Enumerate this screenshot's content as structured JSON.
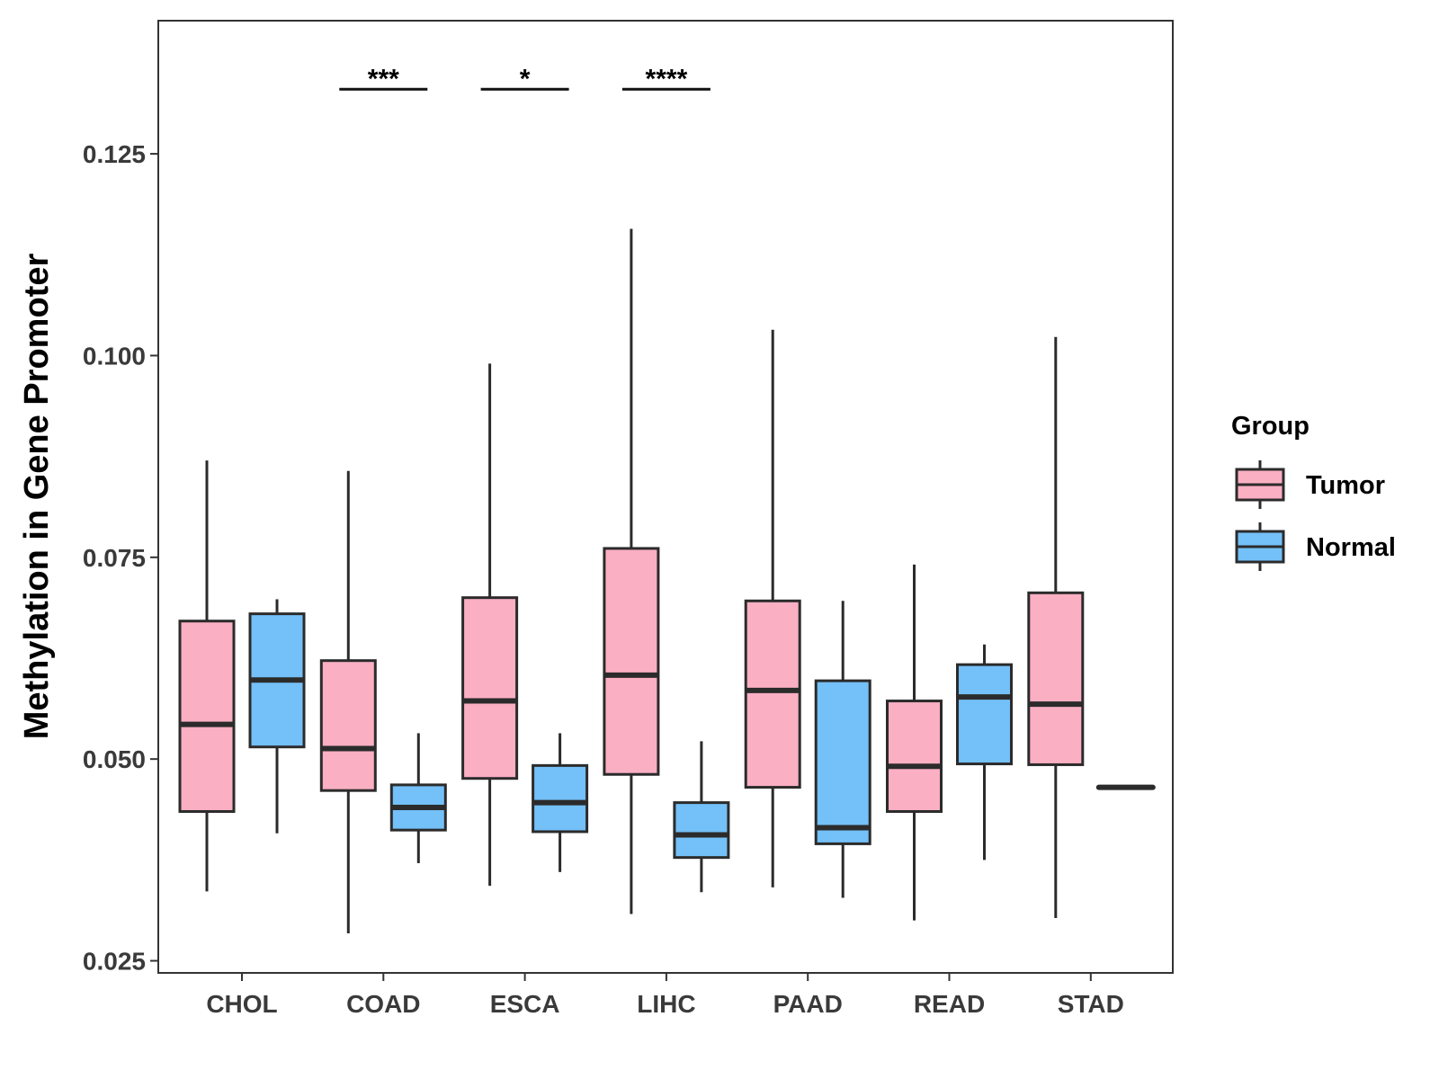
{
  "chart_data": {
    "type": "boxplot",
    "title": "",
    "xlabel": "",
    "ylabel": "Methylation in Gene Promoter",
    "ylim": [
      0.0235,
      0.1415
    ],
    "yticks": [
      0.025,
      0.05,
      0.075,
      0.1,
      0.125
    ],
    "ytick_labels": [
      "0.025",
      "0.050",
      "0.075",
      "0.100",
      "0.125"
    ],
    "categories": [
      "CHOL",
      "COAD",
      "ESCA",
      "LIHC",
      "PAAD",
      "READ",
      "STAD"
    ],
    "legend": {
      "title": "Group",
      "position": "right",
      "entries": [
        {
          "name": "Tumor",
          "color": "#FBAFC3"
        },
        {
          "name": "Normal",
          "color": "#74C0F8"
        }
      ]
    },
    "series": [
      {
        "name": "Tumor",
        "color": "#FBAFC3",
        "boxes": [
          {
            "category": "CHOL",
            "whisker_low": 0.0336,
            "q1": 0.0435,
            "median": 0.0543,
            "q3": 0.0671,
            "whisker_high": 0.087
          },
          {
            "category": "COAD",
            "whisker_low": 0.0284,
            "q1": 0.0461,
            "median": 0.0513,
            "q3": 0.0622,
            "whisker_high": 0.0857
          },
          {
            "category": "ESCA",
            "whisker_low": 0.0343,
            "q1": 0.0476,
            "median": 0.0572,
            "q3": 0.07,
            "whisker_high": 0.099
          },
          {
            "category": "LIHC",
            "whisker_low": 0.0308,
            "q1": 0.0481,
            "median": 0.0604,
            "q3": 0.0761,
            "whisker_high": 0.1157
          },
          {
            "category": "PAAD",
            "whisker_low": 0.0341,
            "q1": 0.0465,
            "median": 0.0585,
            "q3": 0.0696,
            "whisker_high": 0.1032
          },
          {
            "category": "READ",
            "whisker_low": 0.03,
            "q1": 0.0435,
            "median": 0.0491,
            "q3": 0.0572,
            "whisker_high": 0.0741
          },
          {
            "category": "STAD",
            "whisker_low": 0.0303,
            "q1": 0.0493,
            "median": 0.0568,
            "q3": 0.0706,
            "whisker_high": 0.1023
          }
        ]
      },
      {
        "name": "Normal",
        "color": "#74C0F8",
        "boxes": [
          {
            "category": "CHOL",
            "whisker_low": 0.0408,
            "q1": 0.0515,
            "median": 0.0598,
            "q3": 0.068,
            "whisker_high": 0.0698
          },
          {
            "category": "COAD",
            "whisker_low": 0.0371,
            "q1": 0.0412,
            "median": 0.044,
            "q3": 0.0468,
            "whisker_high": 0.0532
          },
          {
            "category": "ESCA",
            "whisker_low": 0.036,
            "q1": 0.041,
            "median": 0.0446,
            "q3": 0.0492,
            "whisker_high": 0.0532
          },
          {
            "category": "LIHC",
            "whisker_low": 0.0335,
            "q1": 0.0378,
            "median": 0.0406,
            "q3": 0.0446,
            "whisker_high": 0.0522
          },
          {
            "category": "PAAD",
            "whisker_low": 0.0328,
            "q1": 0.0395,
            "median": 0.0415,
            "q3": 0.0597,
            "whisker_high": 0.0696
          },
          {
            "category": "READ",
            "whisker_low": 0.0375,
            "q1": 0.0494,
            "median": 0.0577,
            "q3": 0.0617,
            "whisker_high": 0.0642
          },
          {
            "category": "STAD",
            "whisker_low": 0.0465,
            "q1": 0.0465,
            "median": 0.0465,
            "q3": 0.0465,
            "whisker_high": 0.0465
          }
        ]
      }
    ],
    "significance": [
      {
        "category": "COAD",
        "label": "***",
        "y": 0.133
      },
      {
        "category": "ESCA",
        "label": "*",
        "y": 0.133
      },
      {
        "category": "LIHC",
        "label": "****",
        "y": 0.133
      }
    ]
  }
}
